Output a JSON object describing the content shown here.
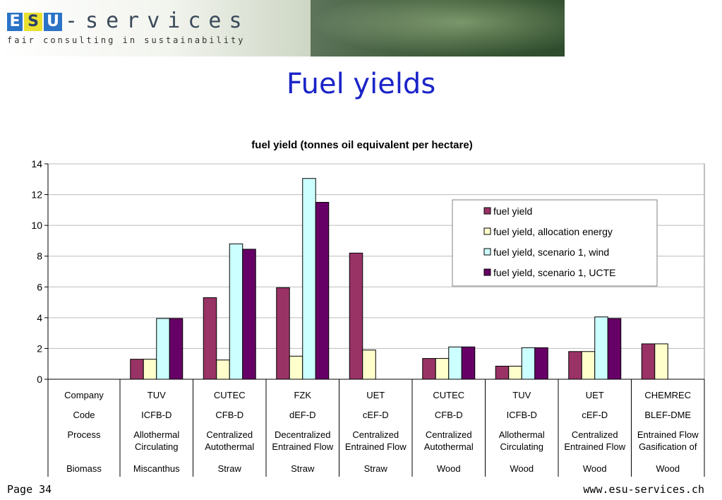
{
  "header": {
    "logo_blocks": [
      "E",
      "S",
      "U"
    ],
    "logo_word": "-services",
    "tagline": "fair consulting in sustainability"
  },
  "slide": {
    "title": "Fuel yields"
  },
  "footer": {
    "page": "Page 34",
    "url": "www.esu-services.ch"
  },
  "colors": {
    "title": "#1a24c8",
    "series": [
      "#993366",
      "#ffffcc",
      "#ccffff",
      "#660066"
    ]
  },
  "chart_data": {
    "type": "bar",
    "title": "fuel yield (tonnes oil equivalent per hectare)",
    "ylim": [
      0,
      14
    ],
    "yticks": [
      0,
      2,
      4,
      6,
      8,
      10,
      12,
      14
    ],
    "grid": true,
    "legend_position": "top-right",
    "row_headers": [
      "Company",
      "Code",
      "Process",
      "Biomass"
    ],
    "categories": [
      {
        "company": "TUV",
        "code": "ICFB-D",
        "process": [
          "Allothermal",
          "Circulating"
        ],
        "biomass": "Miscanthus"
      },
      {
        "company": "CUTEC",
        "code": "CFB-D",
        "process": [
          "Centralized",
          "Autothermal"
        ],
        "biomass": "Straw"
      },
      {
        "company": "FZK",
        "code": "dEF-D",
        "process": [
          "Decentralized",
          "Entrained Flow"
        ],
        "biomass": "Straw"
      },
      {
        "company": "UET",
        "code": "cEF-D",
        "process": [
          "Centralized",
          "Entrained Flow"
        ],
        "biomass": "Straw"
      },
      {
        "company": "CUTEC",
        "code": "CFB-D",
        "process": [
          "Centralized",
          "Autothermal"
        ],
        "biomass": "Wood"
      },
      {
        "company": "TUV",
        "code": "ICFB-D",
        "process": [
          "Allothermal",
          "Circulating"
        ],
        "biomass": "Wood"
      },
      {
        "company": "UET",
        "code": "cEF-D",
        "process": [
          "Centralized",
          "Entrained Flow"
        ],
        "biomass": "Wood"
      },
      {
        "company": "CHEMREC",
        "code": "BLEF-DME",
        "process": [
          "Entrained Flow",
          "Gasification of"
        ],
        "biomass": "Wood"
      }
    ],
    "series": [
      {
        "name": "fuel yield",
        "values": [
          1.3,
          5.3,
          5.95,
          8.2,
          1.35,
          0.85,
          1.8,
          2.3
        ]
      },
      {
        "name": "fuel yield, allocation energy",
        "values": [
          1.3,
          1.25,
          1.5,
          1.9,
          1.35,
          0.85,
          1.8,
          2.3
        ]
      },
      {
        "name": "fuel yield, scenario 1, wind",
        "values": [
          3.95,
          8.8,
          13.05,
          null,
          2.1,
          2.05,
          4.05,
          null
        ]
      },
      {
        "name": "fuel yield, scenario 1, UCTE",
        "values": [
          3.95,
          8.45,
          11.5,
          null,
          2.1,
          2.05,
          3.95,
          null
        ]
      }
    ]
  }
}
